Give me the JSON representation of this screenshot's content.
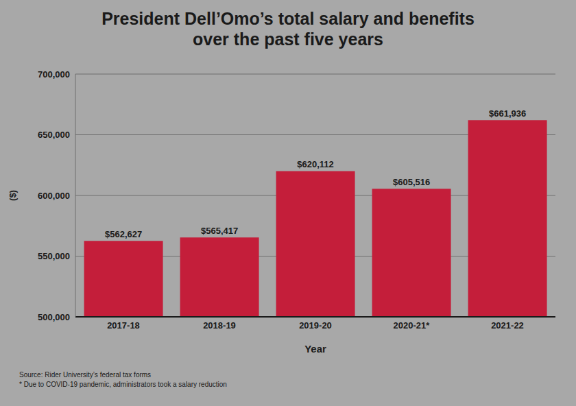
{
  "chart_data": {
    "type": "bar",
    "title": "President Dell’Omo’s total salary and benefits over the past five years",
    "x_label": "Year",
    "y_label": "($)",
    "categories": [
      "2017-18",
      "2018-19",
      "2019-20",
      "2020-21*",
      "2021-22"
    ],
    "values": [
      562627,
      565417,
      620112,
      605516,
      661936
    ],
    "value_labels": [
      "$562,627",
      "$565,417",
      "$620,112",
      "$605,516",
      "$661,936"
    ],
    "data_labels": true,
    "color": "#c41e3a",
    "ylim": [
      500000,
      700000
    ],
    "yticks": [
      {
        "value": 500000,
        "label": "500,000"
      },
      {
        "value": 550000,
        "label": "550,000"
      },
      {
        "value": 600000,
        "label": "600,000"
      },
      {
        "value": 650000,
        "label": "650,000"
      },
      {
        "value": 700000,
        "label": "700,000"
      }
    ],
    "grid": true,
    "annotations": [
      "Source: Rider University’s federal tax forms",
      "* Due to COVID-19 pandemic, administrators took a salary reduction"
    ]
  }
}
